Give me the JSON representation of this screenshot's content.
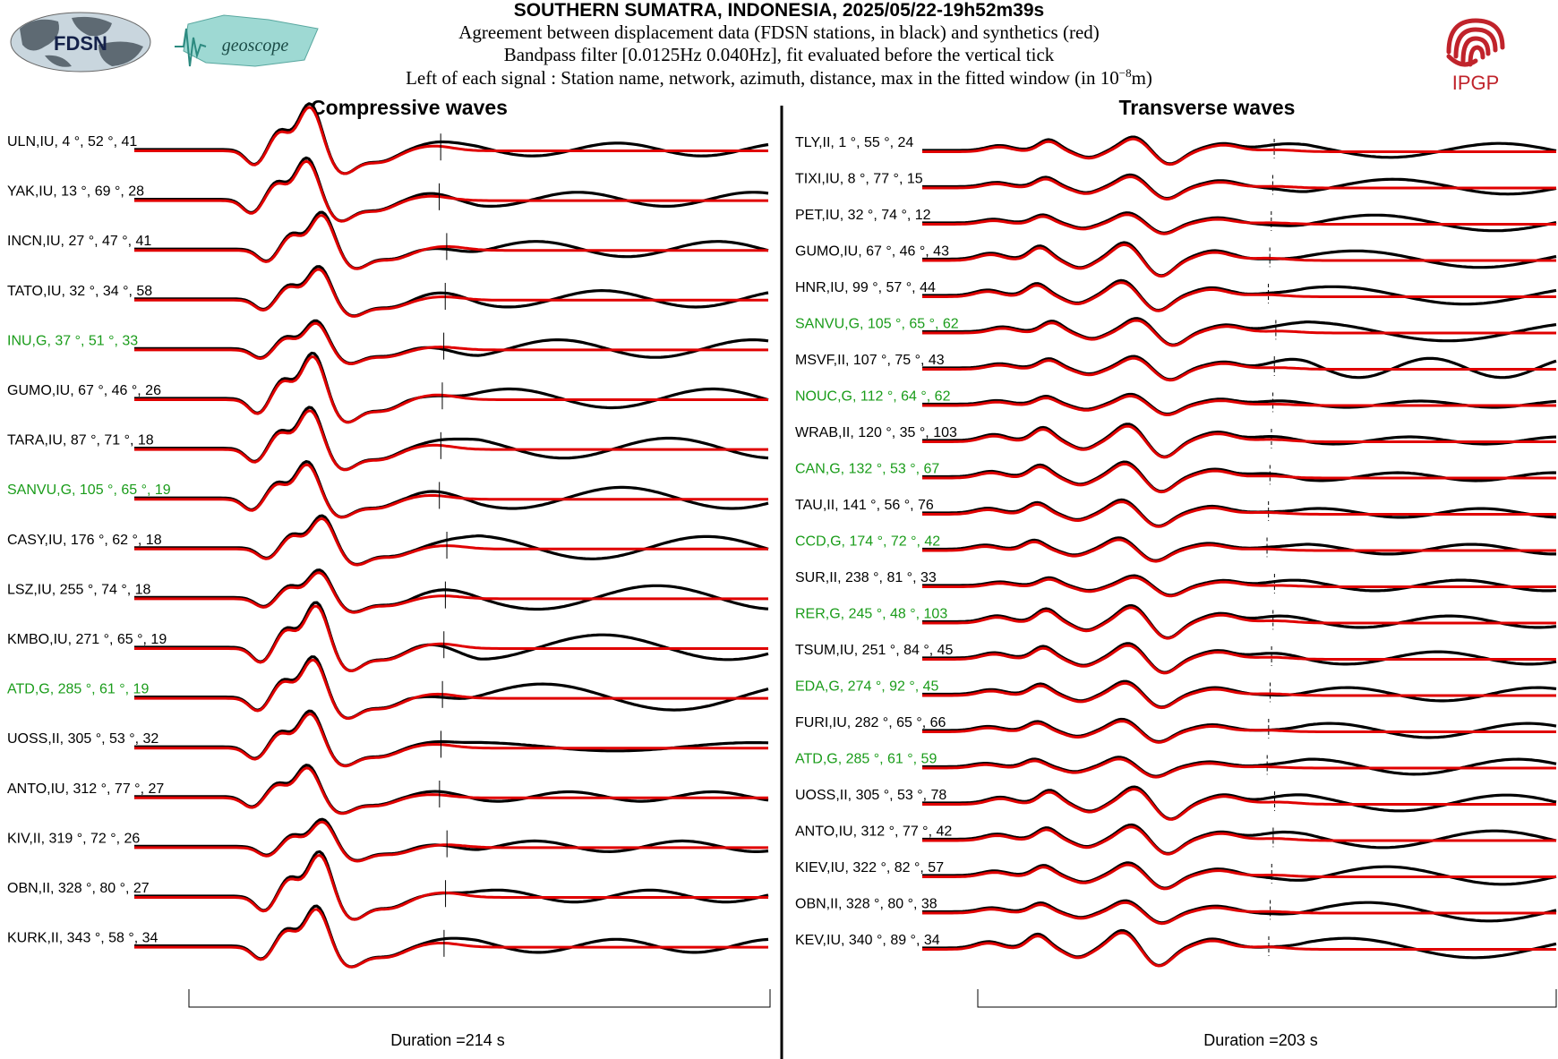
{
  "header": {
    "title": "SOUTHERN SUMATRA, INDONESIA, 2025/05/22-19h52m39s",
    "line1": "Agreement between displacement data (FDSN stations, in black) and synthetics (red)",
    "line2": "Bandpass filter [0.0125Hz 0.040Hz], fit evaluated before the vertical tick",
    "line3_prefix": "Left of each signal : Station name, network, azimuth, distance, max in the fitted window (in 10",
    "line3_exp": "−8",
    "line3_suffix": "m)"
  },
  "logos": {
    "fdsn": "FDSN",
    "geoscope": "geoscope",
    "ipgp": "IPGP"
  },
  "colors": {
    "data": "#000000",
    "synthetic": "#e00000",
    "geoscope_label": "#1a9c1a",
    "other_label": "#000000"
  },
  "chart_data": [
    {
      "type": "line",
      "title": "Compressive waves",
      "duration_label": "Duration =214 s",
      "duration_s": 214,
      "stations": [
        {
          "label": "ULN,IU, 4 °, 52 °, 41",
          "net": "IU"
        },
        {
          "label": "YAK,IU, 13 °, 69 °, 28",
          "net": "IU"
        },
        {
          "label": "INCN,IU, 27 °, 47 °, 41",
          "net": "IU"
        },
        {
          "label": "TATO,IU, 32 °, 34 °, 58",
          "net": "IU"
        },
        {
          "label": "INU,G, 37 °, 51 °, 33",
          "net": "G"
        },
        {
          "label": "GUMO,IU, 67 °, 46 °, 26",
          "net": "IU"
        },
        {
          "label": "TARA,IU, 87 °, 71 °, 18",
          "net": "IU"
        },
        {
          "label": "SANVU,G, 105 °, 65 °, 19",
          "net": "G"
        },
        {
          "label": "CASY,IU, 176 °, 62 °, 18",
          "net": "IU"
        },
        {
          "label": "LSZ,IU, 255 °, 74 °, 18",
          "net": "IU"
        },
        {
          "label": "KMBO,IU, 271 °, 65 °, 19",
          "net": "IU"
        },
        {
          "label": "ATD,G, 285 °, 61 °, 19",
          "net": "G"
        },
        {
          "label": "UOSS,II, 305 °, 53 °, 32",
          "net": "II"
        },
        {
          "label": "ANTO,IU, 312 °, 77 °, 27",
          "net": "IU"
        },
        {
          "label": "KIV,II, 319 °, 72 °, 26",
          "net": "II"
        },
        {
          "label": "OBN,II, 328 °, 80 °, 27",
          "net": "II"
        },
        {
          "label": "KURK,II, 343 °, 58 °, 34",
          "net": "II"
        }
      ]
    },
    {
      "type": "line",
      "title": "Transverse waves",
      "duration_label": "Duration =203 s",
      "duration_s": 203,
      "stations": [
        {
          "label": "TLY,II, 1 °, 55 °, 24",
          "net": "II"
        },
        {
          "label": "TIXI,IU, 8 °, 77 °, 15",
          "net": "IU"
        },
        {
          "label": "PET,IU, 32 °, 74 °, 12",
          "net": "IU"
        },
        {
          "label": "GUMO,IU, 67 °, 46 °, 43",
          "net": "IU"
        },
        {
          "label": "HNR,IU, 99 °, 57 °, 44",
          "net": "IU"
        },
        {
          "label": "SANVU,G, 105 °, 65 °, 62",
          "net": "G"
        },
        {
          "label": "MSVF,II, 107 °, 75 °, 43",
          "net": "II"
        },
        {
          "label": "NOUC,G, 112 °, 64 °, 62",
          "net": "G"
        },
        {
          "label": "WRAB,II, 120 °, 35 °, 103",
          "net": "II"
        },
        {
          "label": "CAN,G, 132 °, 53 °, 67",
          "net": "G"
        },
        {
          "label": "TAU,II, 141 °, 56 °, 76",
          "net": "II"
        },
        {
          "label": "CCD,G, 174 °, 72 °, 42",
          "net": "G"
        },
        {
          "label": "SUR,II, 238 °, 81 °, 33",
          "net": "II"
        },
        {
          "label": "RER,G, 245 °, 48 °, 103",
          "net": "G"
        },
        {
          "label": "TSUM,IU, 251 °, 84 °, 45",
          "net": "IU"
        },
        {
          "label": "EDA,G, 274 °, 92 °, 45",
          "net": "G"
        },
        {
          "label": "FURI,IU, 282 °, 65 °, 66",
          "net": "IU"
        },
        {
          "label": "ATD,G, 285 °, 61 °, 59",
          "net": "G"
        },
        {
          "label": "UOSS,II, 305 °, 53 °, 78",
          "net": "II"
        },
        {
          "label": "ANTO,IU, 312 °, 77 °, 42",
          "net": "IU"
        },
        {
          "label": "KIEV,IU, 322 °, 82 °, 57",
          "net": "IU"
        },
        {
          "label": "OBN,II, 328 °, 80 °, 38",
          "net": "II"
        },
        {
          "label": "KEV,IU, 340 °, 89 °, 34",
          "net": "IU"
        }
      ]
    }
  ]
}
